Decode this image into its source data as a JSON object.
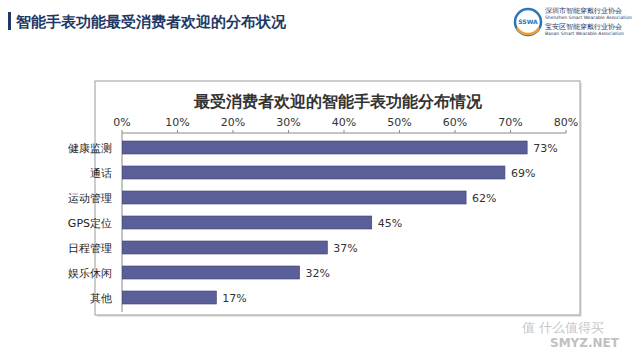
{
  "page": {
    "title": "智能手表功能最受消费者欢迎的分布状况",
    "logo_mark": "SSWA",
    "logo_texts": [
      "深圳市智能穿戴行业协会",
      "Shenzhen Smart Wearable Association",
      "宝安区智能穿戴行业协会",
      "Baoan Smart Wearable Association"
    ],
    "watermark": [
      "值 什么值得买",
      "SMYZ.NET"
    ]
  },
  "chart_data": {
    "type": "bar",
    "orientation": "horizontal",
    "title": "最受消费者欢迎的智能手表功能分布情况",
    "categories": [
      "健康监测",
      "通话",
      "运动管理",
      "GPS定位",
      "日程管理",
      "娱乐休闲",
      "其他"
    ],
    "values": [
      73,
      69,
      62,
      45,
      37,
      32,
      17
    ],
    "value_labels": [
      "73%",
      "69%",
      "62%",
      "45%",
      "37%",
      "32%",
      "17%"
    ],
    "color": "#5b5f97",
    "xlim": [
      0,
      80
    ],
    "xticks": [
      {
        "value": 0,
        "label": "0%"
      },
      {
        "value": 10,
        "label": "10%"
      },
      {
        "value": 20,
        "label": "20%"
      },
      {
        "value": 30,
        "label": "30%"
      },
      {
        "value": 40,
        "label": "40%"
      },
      {
        "value": 50,
        "label": "50%"
      },
      {
        "value": 60,
        "label": "60%"
      },
      {
        "value": 70,
        "label": "70%"
      },
      {
        "value": 80,
        "label": "80%"
      }
    ],
    "grid": false,
    "data_labels": true
  }
}
